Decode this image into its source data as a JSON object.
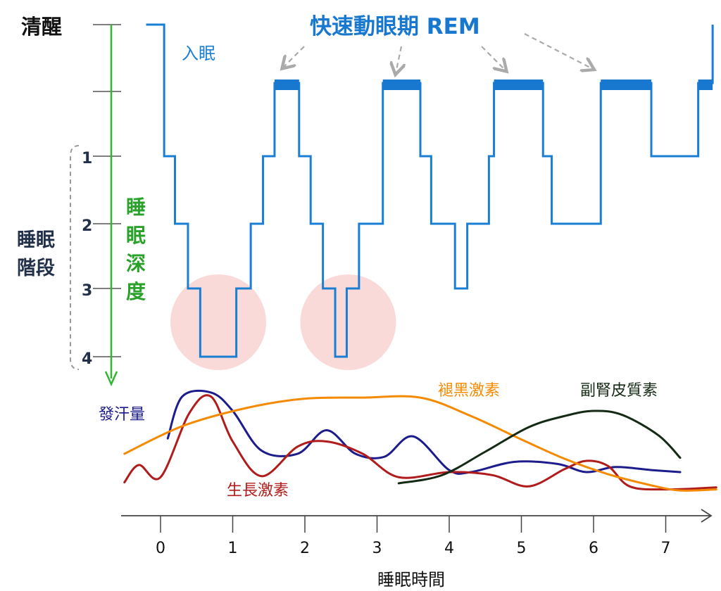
{
  "title": "快速動眼期 REM",
  "labels": {
    "awake": "清醒",
    "fall_asleep": "入眠",
    "stages_line1": "睡眠",
    "stages_line2": "階段",
    "depth_chars": [
      "睡",
      "眠",
      "深",
      "度"
    ],
    "x_axis_title": "睡眠時間"
  },
  "stage_ticks": [
    "1",
    "2",
    "3",
    "4"
  ],
  "time_ticks": [
    "0",
    "1",
    "2",
    "3",
    "4",
    "5",
    "6",
    "7"
  ],
  "hormones": {
    "sweat": "發汗量",
    "melatonin": "褪黑激素",
    "cortisol": "副腎皮質素",
    "growth": "生長激素"
  },
  "colors": {
    "hypnogram": "#1a7fd4",
    "rem_bar": "#1878d0",
    "deep_sleep_circle": "#f9cfcf",
    "depth_arrow": "#2fb82f",
    "depth_text": "#2aa12a",
    "title": "#1878d0",
    "sweat": "#1c1c8c",
    "growth": "#b01c1c",
    "melatonin": "#f58a00",
    "cortisol": "#152a15",
    "axis": "#333333",
    "dashed_arrow": "#aaaaaa"
  },
  "chart_data": {
    "type": "line",
    "hypnogram": {
      "x_unit": "hours",
      "y_levels": [
        "清醒",
        "REM",
        "1",
        "2",
        "3",
        "4"
      ],
      "steps": [
        [
          -0.2,
          "清醒"
        ],
        [
          0.05,
          "1"
        ],
        [
          0.2,
          "2"
        ],
        [
          0.38,
          "3"
        ],
        [
          0.55,
          "4"
        ],
        [
          1.05,
          "3"
        ],
        [
          1.25,
          "2"
        ],
        [
          1.42,
          "1"
        ],
        [
          1.58,
          "REM"
        ],
        [
          1.92,
          "1"
        ],
        [
          2.08,
          "2"
        ],
        [
          2.25,
          "3"
        ],
        [
          2.42,
          "4"
        ],
        [
          2.58,
          "3"
        ],
        [
          2.75,
          "2"
        ],
        [
          3.08,
          "REM"
        ],
        [
          3.6,
          "1"
        ],
        [
          3.75,
          "2"
        ],
        [
          4.08,
          "3"
        ],
        [
          4.25,
          "2"
        ],
        [
          4.55,
          "1"
        ],
        [
          4.62,
          "REM"
        ],
        [
          5.3,
          "1"
        ],
        [
          5.42,
          "2"
        ],
        [
          6.1,
          "REM"
        ],
        [
          6.8,
          "1"
        ],
        [
          7.45,
          "REM"
        ],
        [
          7.65,
          "清醒"
        ]
      ],
      "rem_periods": [
        [
          1.58,
          1.92
        ],
        [
          3.08,
          3.6
        ],
        [
          4.62,
          5.3
        ],
        [
          6.1,
          6.8
        ],
        [
          7.45,
          7.65
        ]
      ],
      "deep_sleep_highlights": [
        [
          0.45,
          1.15
        ],
        [
          2.25,
          2.95
        ]
      ]
    },
    "series": [
      {
        "name": "發汗量",
        "x": [
          0.1,
          0.3,
          0.7,
          1.0,
          1.4,
          1.9,
          2.3,
          2.7,
          3.1,
          3.5,
          4.0,
          4.3,
          4.9,
          5.5,
          5.9,
          6.3,
          6.8,
          7.2
        ],
        "y": [
          0.53,
          0.94,
          0.98,
          0.8,
          0.41,
          0.38,
          0.61,
          0.38,
          0.35,
          0.55,
          0.22,
          0.2,
          0.3,
          0.28,
          0.2,
          0.25,
          0.22,
          0.2
        ]
      },
      {
        "name": "生長激素",
        "x": [
          -0.5,
          -0.3,
          0.0,
          0.4,
          0.7,
          1.0,
          1.4,
          1.9,
          2.3,
          2.8,
          3.3,
          4.0,
          4.6,
          5.1,
          5.6,
          5.9,
          6.2,
          6.5,
          7.0,
          7.7
        ],
        "y": [
          0.1,
          0.27,
          0.15,
          0.78,
          0.94,
          0.5,
          0.16,
          0.45,
          0.5,
          0.38,
          0.15,
          0.2,
          0.17,
          0.06,
          0.23,
          0.31,
          0.26,
          0.06,
          0.03,
          0.05
        ]
      },
      {
        "name": "褪黑激素",
        "x": [
          -0.5,
          0.3,
          1.2,
          2.0,
          2.8,
          3.6,
          4.3,
          5.0,
          5.6,
          6.2,
          6.8,
          7.2,
          7.7
        ],
        "y": [
          0.38,
          0.65,
          0.83,
          0.92,
          0.93,
          0.93,
          0.75,
          0.52,
          0.33,
          0.18,
          0.07,
          0.02,
          0.03
        ]
      },
      {
        "name": "副腎皮質素",
        "x": [
          3.3,
          3.9,
          4.5,
          5.1,
          5.6,
          6.0,
          6.4,
          6.9,
          7.2
        ],
        "y": [
          0.09,
          0.17,
          0.4,
          0.64,
          0.75,
          0.8,
          0.76,
          0.56,
          0.34
        ]
      }
    ],
    "xlabel": "睡眠時間",
    "xlim": [
      -0.5,
      7.7
    ]
  }
}
